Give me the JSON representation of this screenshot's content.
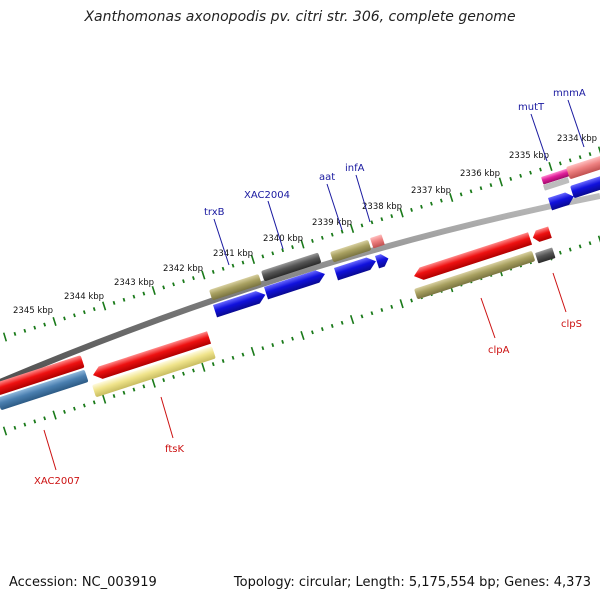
{
  "title": "Xanthomonas axonopodis pv. citri str. 306, complete genome",
  "footer": {
    "accession": "Accession: NC_003919",
    "summary": "Topology: circular; Length: 5,175,554 bp; Genes: 4,373"
  },
  "colors": {
    "backbone": "#808080",
    "tick": "#1a7a1a",
    "forward_label": "#1a1aa0",
    "reverse_label": "#cc1111",
    "red_gene": "#ee1111",
    "blue_gene": "#1111dd",
    "olive_gene": "#a8a060",
    "gray_gene": "#555555",
    "steel_gene": "#4a7fb0",
    "pale_gene": "#f0e48c",
    "magenta_gene": "#e0209a",
    "pink_gene": "#ee8080"
  },
  "scale": {
    "tick_labels": [
      "2345 kbp",
      "2344 kbp",
      "2343 kbp",
      "2342 kbp",
      "2341 kbp",
      "2340 kbp",
      "2339 kbp",
      "2338 kbp",
      "2337 kbp",
      "2336 kbp",
      "2335 kbp",
      "2334 kbp"
    ]
  },
  "gene_labels": {
    "forward": [
      "trxB",
      "XAC2004",
      "aat",
      "infA",
      "mutT",
      "mnmA"
    ],
    "reverse": [
      "XAC2007",
      "ftsK",
      "clpA",
      "clpS"
    ]
  }
}
